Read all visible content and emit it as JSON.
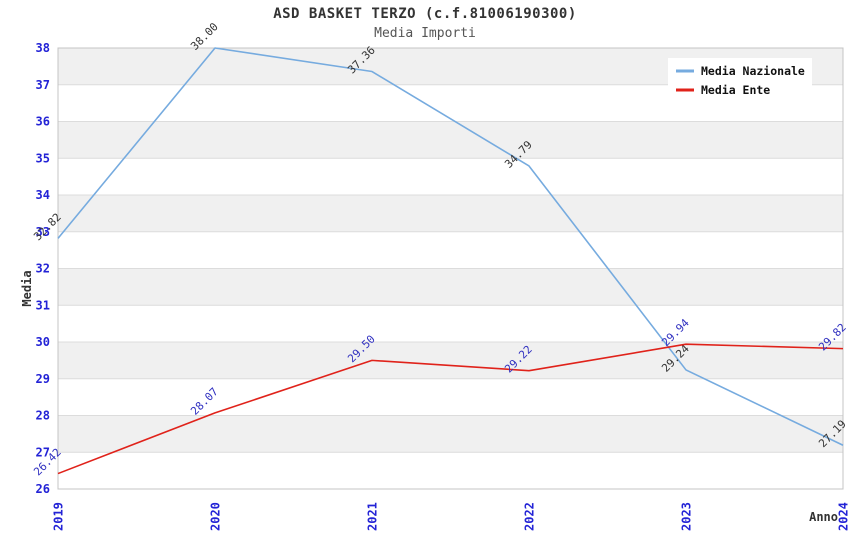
{
  "header": {
    "title": "ASD BASKET TERZO (c.f.81006190300)",
    "subtitle": "Media Importi"
  },
  "chart_data": {
    "type": "line",
    "title": "ASD BASKET TERZO (c.f.81006190300)",
    "subtitle": "Media Importi",
    "xlabel": "Anno",
    "ylabel": "Media",
    "x": [
      2019,
      2020,
      2021,
      2022,
      2023,
      2024
    ],
    "series": [
      {
        "name": "Media Nazionale",
        "color": "#76ABDF",
        "label_color": "#333333",
        "values": [
          32.82,
          38.0,
          37.36,
          34.79,
          29.24,
          27.19
        ]
      },
      {
        "name": "Media Ente",
        "color": "#E0221A",
        "label_color": "#3030C0",
        "values": [
          26.42,
          28.07,
          29.5,
          29.22,
          29.94,
          29.82
        ]
      }
    ],
    "ylim": [
      26,
      38
    ],
    "ytick_step": 1,
    "yticks": [
      26,
      27,
      28,
      29,
      30,
      31,
      32,
      33,
      34,
      35,
      36,
      37,
      38
    ],
    "grid": "horizontal gridlines with alternating shaded bands",
    "legend_position": "top-right",
    "band_color": "#F0F0F0",
    "band_alt_color": "#FFFFFF",
    "gridline_color": "#DCDCDC",
    "border_color": "#C4C4C4",
    "tick_label_color": "#2323D6",
    "axis_label_color": "#333333",
    "legend_bg": "#FFFFFF",
    "legend_text_color": "#111111"
  }
}
